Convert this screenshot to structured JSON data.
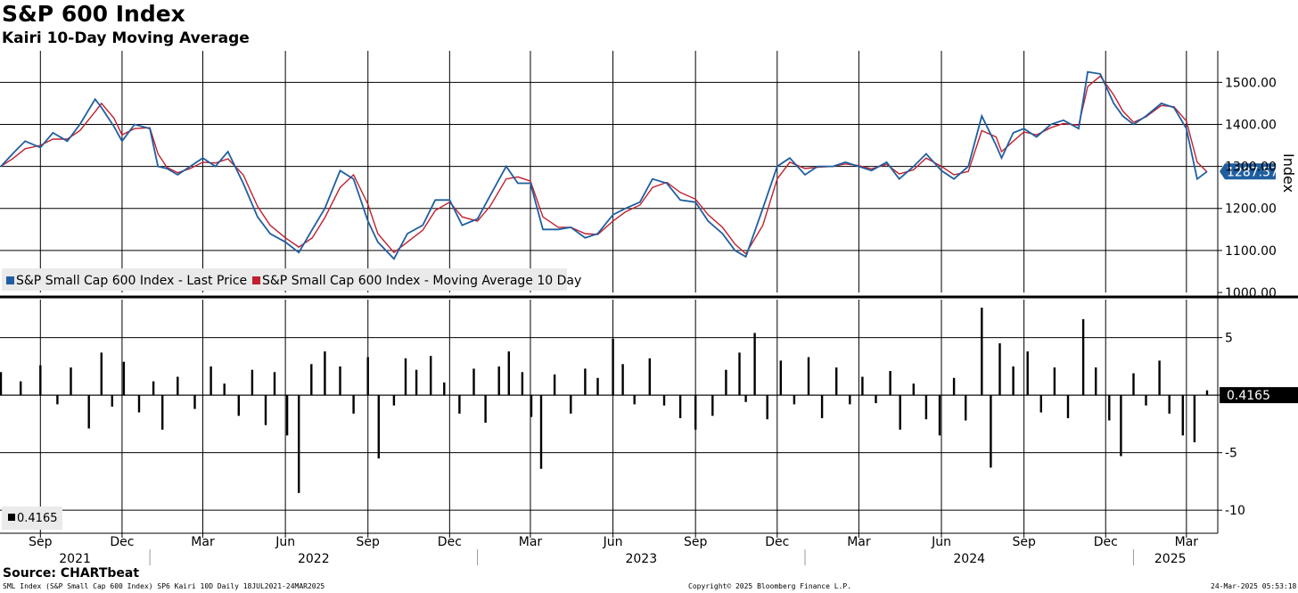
{
  "header": {
    "title": "S&P 600 Index",
    "subtitle": "Kairi 10-Day Moving Average"
  },
  "footer": {
    "source": "Source: CHARTbeat",
    "info": "SML Index (S&P Small Cap 600 Index) SP6 Kairi 10D  Daily 18JUL2021-24MAR2025",
    "copyright": "Copyright© 2025 Bloomberg Finance L.P.",
    "timestamp": "24-Mar-2025 05:53:18"
  },
  "colors": {
    "price": "#1f5fa0",
    "ma": "#c0202f",
    "bars": "#000000",
    "grid": "#000000"
  },
  "chart_data": [
    {
      "type": "line",
      "panel": "top",
      "ylabel": "Index",
      "ylim": [
        1000,
        1575
      ],
      "yticks": [
        1000,
        1100,
        1200,
        1300,
        1400,
        1500
      ],
      "ytick_labels": [
        "1000.00",
        "1100.00",
        "1200.00",
        "1300.00",
        "1400.00",
        "1500.00"
      ],
      "last_value_label": "1287.57",
      "legend": [
        "S&P Small Cap 600 Index - Last Price",
        "S&P Small Cap 600 Index - Moving Average 10 Day"
      ],
      "legend_placement": "bottom-left",
      "grid": true,
      "x": [
        "2021-07-19",
        "2021-08-01",
        "2021-08-15",
        "2021-09-01",
        "2021-09-15",
        "2021-10-01",
        "2021-10-15",
        "2021-11-01",
        "2021-11-08",
        "2021-11-22",
        "2021-12-01",
        "2021-12-15",
        "2022-01-01",
        "2022-01-10",
        "2022-01-20",
        "2022-02-01",
        "2022-02-15",
        "2022-03-01",
        "2022-03-15",
        "2022-03-29",
        "2022-04-15",
        "2022-05-01",
        "2022-05-15",
        "2022-06-01",
        "2022-06-16",
        "2022-07-01",
        "2022-07-15",
        "2022-08-01",
        "2022-08-16",
        "2022-09-01",
        "2022-09-12",
        "2022-09-30",
        "2022-10-15",
        "2022-11-01",
        "2022-11-15",
        "2022-12-01",
        "2022-12-15",
        "2023-01-01",
        "2023-01-15",
        "2023-02-02",
        "2023-02-15",
        "2023-03-01",
        "2023-03-15",
        "2023-04-01",
        "2023-04-15",
        "2023-05-01",
        "2023-05-15",
        "2023-06-01",
        "2023-06-15",
        "2023-07-01",
        "2023-07-15",
        "2023-07-31",
        "2023-08-15",
        "2023-09-01",
        "2023-09-15",
        "2023-10-01",
        "2023-10-15",
        "2023-10-27",
        "2023-11-15",
        "2023-12-01",
        "2023-12-15",
        "2024-01-01",
        "2024-01-15",
        "2024-02-01",
        "2024-02-15",
        "2024-03-01",
        "2024-03-15",
        "2024-04-01",
        "2024-04-15",
        "2024-05-01",
        "2024-05-15",
        "2024-06-01",
        "2024-06-15",
        "2024-07-01",
        "2024-07-16",
        "2024-08-01",
        "2024-08-07",
        "2024-08-20",
        "2024-09-01",
        "2024-09-15",
        "2024-10-01",
        "2024-10-15",
        "2024-11-01",
        "2024-11-11",
        "2024-11-25",
        "2024-12-10",
        "2024-12-20",
        "2025-01-01",
        "2025-01-15",
        "2025-02-01",
        "2025-02-15",
        "2025-03-01",
        "2025-03-13",
        "2025-03-24"
      ],
      "series": [
        {
          "name": "S&P Small Cap 600 Index - Last Price",
          "values": [
            1300,
            1330,
            1360,
            1345,
            1380,
            1360,
            1400,
            1460,
            1440,
            1395,
            1360,
            1400,
            1390,
            1300,
            1295,
            1280,
            1300,
            1320,
            1300,
            1335,
            1260,
            1180,
            1140,
            1120,
            1095,
            1150,
            1200,
            1290,
            1270,
            1170,
            1120,
            1080,
            1140,
            1160,
            1220,
            1220,
            1160,
            1175,
            1230,
            1300,
            1260,
            1260,
            1150,
            1150,
            1155,
            1130,
            1140,
            1185,
            1200,
            1215,
            1270,
            1260,
            1220,
            1215,
            1170,
            1140,
            1100,
            1085,
            1200,
            1300,
            1320,
            1280,
            1300,
            1300,
            1310,
            1300,
            1290,
            1310,
            1270,
            1300,
            1330,
            1290,
            1270,
            1300,
            1420,
            1350,
            1320,
            1380,
            1390,
            1370,
            1400,
            1410,
            1390,
            1525,
            1520,
            1450,
            1420,
            1400,
            1420,
            1450,
            1440,
            1390,
            1270,
            1288
          ]
        },
        {
          "name": "S&P Small Cap 600 Index - Moving Average 10 Day",
          "values": [
            1300,
            1318,
            1342,
            1350,
            1365,
            1365,
            1385,
            1430,
            1450,
            1415,
            1375,
            1390,
            1392,
            1330,
            1298,
            1285,
            1295,
            1310,
            1308,
            1318,
            1280,
            1205,
            1160,
            1130,
            1108,
            1130,
            1178,
            1250,
            1280,
            1210,
            1140,
            1095,
            1120,
            1148,
            1195,
            1215,
            1180,
            1170,
            1205,
            1270,
            1275,
            1265,
            1180,
            1155,
            1155,
            1140,
            1138,
            1170,
            1192,
            1208,
            1250,
            1262,
            1238,
            1222,
            1185,
            1155,
            1115,
            1092,
            1160,
            1270,
            1310,
            1295,
            1298,
            1300,
            1306,
            1302,
            1294,
            1305,
            1282,
            1292,
            1320,
            1300,
            1280,
            1288,
            1385,
            1370,
            1335,
            1360,
            1382,
            1375,
            1392,
            1402,
            1398,
            1490,
            1515,
            1470,
            1432,
            1405,
            1418,
            1445,
            1442,
            1408,
            1310,
            1287
          ]
        }
      ]
    },
    {
      "type": "bar",
      "panel": "bottom",
      "ylim": [
        -12,
        8.3
      ],
      "yticks": [
        5,
        0,
        -5,
        -10
      ],
      "ytick_labels": [
        "5",
        "0",
        "-5",
        "-10"
      ],
      "last_value_label": "0.4165",
      "legend": [
        "0.4165"
      ],
      "legend_placement": "bottom-left",
      "grid": true,
      "x": [
        "2021-07-19",
        "2021-08-10",
        "2021-09-01",
        "2021-09-20",
        "2021-10-05",
        "2021-10-25",
        "2021-11-08",
        "2021-11-20",
        "2021-12-03",
        "2021-12-20",
        "2022-01-05",
        "2022-01-15",
        "2022-02-01",
        "2022-02-20",
        "2022-03-10",
        "2022-03-25",
        "2022-04-10",
        "2022-04-25",
        "2022-05-10",
        "2022-05-20",
        "2022-06-03",
        "2022-06-16",
        "2022-06-30",
        "2022-07-15",
        "2022-08-01",
        "2022-08-16",
        "2022-09-01",
        "2022-09-13",
        "2022-09-30",
        "2022-10-13",
        "2022-10-25",
        "2022-11-10",
        "2022-11-25",
        "2022-12-12",
        "2022-12-28",
        "2023-01-10",
        "2023-01-25",
        "2023-02-05",
        "2023-02-20",
        "2023-03-02",
        "2023-03-13",
        "2023-03-28",
        "2023-04-15",
        "2023-05-01",
        "2023-05-15",
        "2023-06-01",
        "2023-06-12",
        "2023-06-25",
        "2023-07-12",
        "2023-07-28",
        "2023-08-15",
        "2023-09-01",
        "2023-09-20",
        "2023-10-05",
        "2023-10-20",
        "2023-10-27",
        "2023-11-06",
        "2023-11-20",
        "2023-12-05",
        "2023-12-20",
        "2024-01-05",
        "2024-01-20",
        "2024-02-05",
        "2024-02-20",
        "2024-03-05",
        "2024-03-20",
        "2024-04-05",
        "2024-04-16",
        "2024-05-01",
        "2024-05-15",
        "2024-05-30",
        "2024-06-15",
        "2024-06-28",
        "2024-07-16",
        "2024-07-26",
        "2024-08-05",
        "2024-08-20",
        "2024-09-05",
        "2024-09-20",
        "2024-10-05",
        "2024-10-20",
        "2024-11-06",
        "2024-11-20",
        "2024-12-05",
        "2024-12-18",
        "2025-01-01",
        "2025-01-15",
        "2025-01-30",
        "2025-02-10",
        "2025-02-25",
        "2025-03-10",
        "2025-03-24"
      ],
      "values": [
        2.0,
        1.2,
        2.6,
        -0.8,
        2.4,
        -2.9,
        3.7,
        -1.0,
        2.9,
        -1.5,
        1.2,
        -3.0,
        1.6,
        -1.2,
        2.5,
        1.0,
        -1.8,
        2.2,
        -2.6,
        2.0,
        -3.5,
        -8.5,
        2.7,
        3.8,
        2.5,
        -1.6,
        3.3,
        -5.5,
        -0.9,
        3.2,
        2.2,
        3.4,
        1.1,
        -1.6,
        2.3,
        -2.4,
        2.5,
        3.8,
        2.0,
        -1.9,
        -6.4,
        1.8,
        -1.6,
        2.3,
        1.5,
        4.9,
        2.7,
        -0.8,
        3.2,
        -0.9,
        -2.0,
        -3.0,
        -1.8,
        2.2,
        3.7,
        -0.6,
        5.4,
        -2.1,
        3.0,
        -0.8,
        3.3,
        -2.0,
        2.4,
        -0.8,
        1.6,
        -0.7,
        2.1,
        -3.0,
        1.0,
        -2.1,
        -3.5,
        1.5,
        -2.2,
        7.6,
        -6.3,
        4.5,
        2.5,
        3.8,
        -1.5,
        2.4,
        -2.0,
        6.6,
        2.4,
        -2.2,
        -5.3,
        1.9,
        -0.9,
        3.0,
        -1.6,
        -3.5,
        -4.1,
        0.4165
      ]
    }
  ],
  "x_axis": {
    "month_ticks": [
      {
        "date": "2021-09-01",
        "label": "Sep"
      },
      {
        "date": "2021-12-01",
        "label": "Dec"
      },
      {
        "date": "2022-03-01",
        "label": "Mar"
      },
      {
        "date": "2022-06-01",
        "label": "Jun"
      },
      {
        "date": "2022-09-01",
        "label": "Sep"
      },
      {
        "date": "2022-12-01",
        "label": "Dec"
      },
      {
        "date": "2023-03-01",
        "label": "Mar"
      },
      {
        "date": "2023-06-01",
        "label": "Jun"
      },
      {
        "date": "2023-09-01",
        "label": "Sep"
      },
      {
        "date": "2023-12-01",
        "label": "Dec"
      },
      {
        "date": "2024-03-01",
        "label": "Mar"
      },
      {
        "date": "2024-06-01",
        "label": "Jun"
      },
      {
        "date": "2024-09-01",
        "label": "Sep"
      },
      {
        "date": "2024-12-01",
        "label": "Dec"
      },
      {
        "date": "2025-03-01",
        "label": "Mar"
      }
    ],
    "year_labels": [
      {
        "label": "2021",
        "from": "2021-07-18",
        "to": "2022-01-01"
      },
      {
        "label": "2022",
        "from": "2022-01-01",
        "to": "2023-01-01"
      },
      {
        "label": "2023",
        "from": "2023-01-01",
        "to": "2024-01-01"
      },
      {
        "label": "2024",
        "from": "2024-01-01",
        "to": "2025-01-01"
      },
      {
        "label": "2025",
        "from": "2025-01-01",
        "to": "2025-03-24"
      }
    ],
    "start": "2021-07-18",
    "end": "2025-03-24"
  }
}
